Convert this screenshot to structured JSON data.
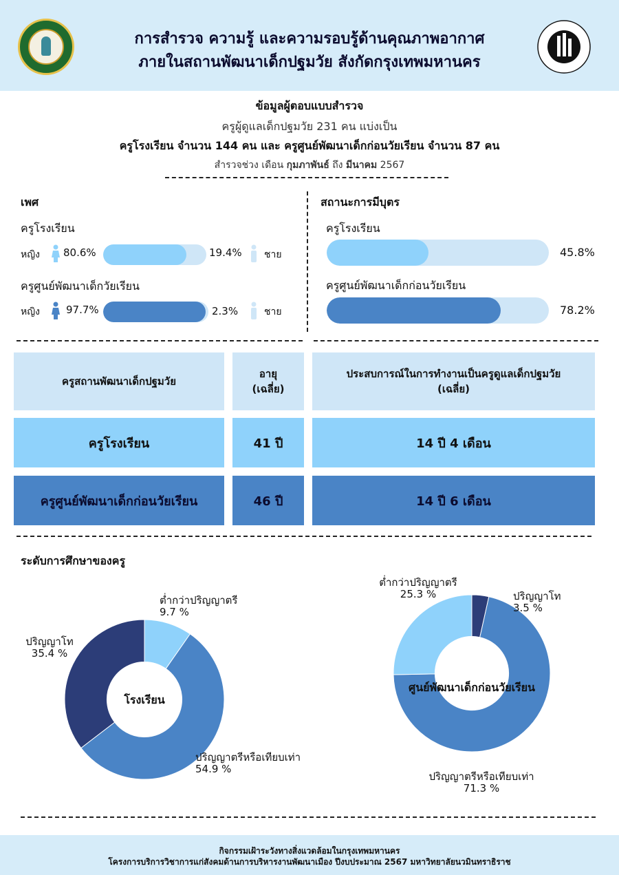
{
  "header": {
    "title_line1": "การสำรวจ ความรู้ และความรอบรู้ด้านคุณภาพอากาศ",
    "title_line2": "ภายในสถานพัฒนาเด็กปฐมวัย สังกัดกรุงเทพมหานคร"
  },
  "info": {
    "heading": "ข้อมูลผู้ตอบแบบสำรวจ",
    "line1_pre": "ครูผู้ดูแลเด็กปฐมวัย ",
    "line1_num": "231",
    "line1_post": " คน แบ่งเป็น",
    "line2_a": "ครูโรงเรียน จำนวน ",
    "line2_num1": "144",
    "line2_b": " คน และ ครูศูนย์พัฒนาเด็กก่อนวัยเรียน จำนวน ",
    "line2_num2": "87",
    "line2_c": " คน",
    "line3_a": "สำรวจช่วง เดือน ",
    "line3_m1": "กุมภาพันธ์",
    "line3_b": " ถึง ",
    "line3_m2": "มีนาคม",
    "line3_c": " 2567"
  },
  "gender": {
    "title": "เพศ",
    "female_label": "หญิง",
    "male_label": "ชาย",
    "groups": [
      {
        "name": "ครูโรงเรียน",
        "female_pct": 80.6,
        "female_text": "80.6%",
        "male_text": "19.4%"
      },
      {
        "name": "ครูศูนย์พัฒนาเด็กวัยเรียน",
        "female_pct": 97.7,
        "female_text": "97.7%",
        "male_text": "2.3%"
      }
    ]
  },
  "parenthood": {
    "title": "สถานะการมีบุตร",
    "groups": [
      {
        "name": "ครูโรงเรียน",
        "pct": 45.8,
        "text": "45.8%"
      },
      {
        "name": "ครูศูนย์พัฒนาเด็กก่อนวัยเรียน",
        "pct": 78.2,
        "text": "78.2%"
      }
    ]
  },
  "table": {
    "headers": [
      "ครูสถานพัฒนาเด็กปฐมวัย",
      "อายุ\n(เฉลี่ย)",
      "ประสบการณ์ในการทำงานเป็นครูดูแลเด็กปฐมวัย\n(เฉลี่ย)"
    ],
    "rows": [
      [
        "ครูโรงเรียน",
        "41 ปี",
        "14 ปี 4 เดือน"
      ],
      [
        "ครูศูนย์พัฒนาเด็กก่อนวัยเรียน",
        "46 ปี",
        "14 ปี 6 เดือน"
      ]
    ]
  },
  "education": {
    "title": "ระดับการศึกษาของครู"
  },
  "chart_data": [
    {
      "type": "pie",
      "title": "โรงเรียน",
      "categories": [
        "ต่ำกว่าปริญญาตรี",
        "ปริญญาตรีหรือเทียบเท่า",
        "ปริญญาโท"
      ],
      "values": [
        9.7,
        54.9,
        35.4
      ],
      "value_labels": [
        "9.7 %",
        "54.9 %",
        "35.4 %"
      ]
    },
    {
      "type": "pie",
      "title": "ศูนย์พัฒนาเด็กก่อนวัยเรียน",
      "categories": [
        "ปริญญาโท",
        "ปริญญาตรีหรือเทียบเท่า",
        "ต่ำกว่าปริญญาตรี"
      ],
      "values": [
        3.5,
        71.3,
        25.3
      ],
      "value_labels": [
        "3.5 %",
        "71.3 %",
        "25.3 %"
      ]
    }
  ],
  "colors": {
    "light_blue": "#8fd2fb",
    "mid_blue": "#4a84c6",
    "dark_navy": "#2c3d78",
    "pale_blue": "#cfe6f7",
    "header_bg": "#d6ecf9"
  },
  "footer": {
    "line1": "กิจกรรมเฝ้าระวังทางสิ่งแวดล้อมในกรุงเทพมหานคร",
    "line2": "โครงการบริการวิชาการแก่สังคมด้านการบริหารงานพัฒนาเมือง ปีงบประมาณ 2567 มหาวิทยาลัยนวมินทราธิราช"
  }
}
